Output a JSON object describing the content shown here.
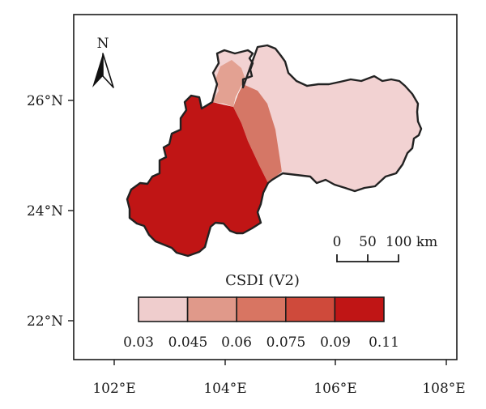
{
  "map": {
    "x_ticks": [
      "102°E",
      "104°E",
      "106°E",
      "108°E"
    ],
    "y_ticks": [
      "26°N",
      "24°N",
      "22°N"
    ],
    "north_label": "N",
    "scale_bar": {
      "labels": [
        "0",
        "50",
        "100 km"
      ]
    },
    "legend": {
      "title": "CSDI (V2)",
      "breaks": [
        "0.03",
        "0.045",
        "0.06",
        "0.075",
        "0.09",
        "0.11"
      ],
      "colors": [
        "#efcdcd",
        "#e0998a",
        "#d87562",
        "#cf4a3b",
        "#c01515"
      ]
    },
    "region_colors": {
      "east": "#f2d2d2",
      "north_strip": "#e3a192",
      "central_band": "#d57766",
      "west": "#c01515"
    }
  }
}
